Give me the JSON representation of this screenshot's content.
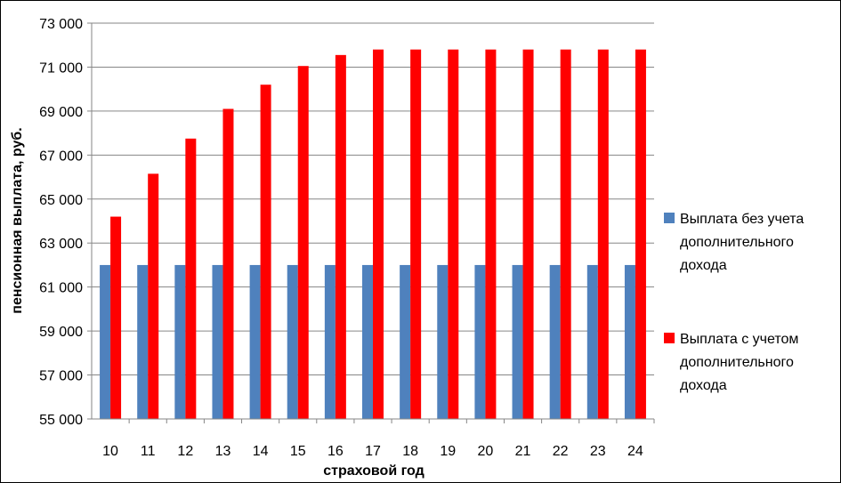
{
  "chart_data": {
    "type": "bar",
    "xlabel": "страховой год",
    "ylabel": "пенсионная выплата, руб.",
    "ylim": [
      55000,
      73000
    ],
    "ytick_step": 2000,
    "ytick_labels": [
      "55 000",
      "57 000",
      "59 000",
      "61 000",
      "63 000",
      "65 000",
      "67 000",
      "69 000",
      "71 000",
      "73 000"
    ],
    "categories": [
      "10",
      "11",
      "12",
      "13",
      "14",
      "15",
      "16",
      "17",
      "18",
      "19",
      "20",
      "21",
      "22",
      "23",
      "24"
    ],
    "series": [
      {
        "name": "Выплата без учета дополнительного дохода",
        "legend_lines": [
          "Выплата без учета",
          "дополнительного",
          "дохода"
        ],
        "color": "#4F81BD",
        "values": [
          62000,
          62000,
          62000,
          62000,
          62000,
          62000,
          62000,
          62000,
          62000,
          62000,
          62000,
          62000,
          62000,
          62000,
          62000
        ]
      },
      {
        "name": "Выплата с учетом дополнительного дохода",
        "legend_lines": [
          "Выплата с учетом",
          "дополнительного",
          "дохода"
        ],
        "color": "#FF0000",
        "values": [
          64200,
          66150,
          67750,
          69100,
          70200,
          71050,
          71550,
          71800,
          71800,
          71800,
          71800,
          71800,
          71800,
          71800,
          71800
        ]
      }
    ],
    "grid": true,
    "legend_position": "right"
  }
}
